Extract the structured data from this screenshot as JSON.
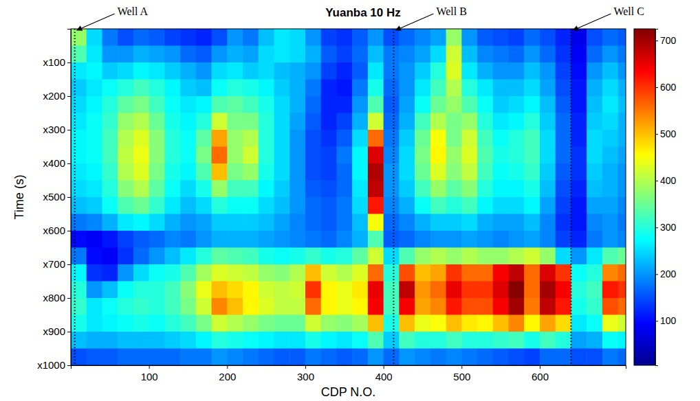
{
  "chart_data": {
    "type": "heatmap",
    "title": "Yuanba 10 Hz",
    "x_label": "CDP N.O.",
    "y_label": "Time (s)",
    "x": [
      10,
      30,
      50,
      70,
      90,
      110,
      130,
      150,
      170,
      190,
      210,
      230,
      250,
      270,
      290,
      310,
      330,
      350,
      370,
      390,
      410,
      430,
      450,
      470,
      490,
      510,
      530,
      550,
      570,
      590,
      610,
      630,
      650,
      670,
      690,
      710
    ],
    "y": [
      25,
      75,
      125,
      175,
      225,
      275,
      325,
      375,
      425,
      475,
      525,
      575,
      625,
      675,
      725,
      775,
      825,
      875,
      925,
      975
    ],
    "values": [
      [
        380,
        250,
        180,
        150,
        170,
        160,
        140,
        130,
        120,
        150,
        200,
        180,
        230,
        260,
        250,
        200,
        140,
        130,
        160,
        200,
        150,
        170,
        190,
        210,
        380,
        200,
        160,
        150,
        140,
        170,
        150,
        120,
        80,
        150,
        170,
        160
      ],
      [
        330,
        260,
        200,
        200,
        220,
        210,
        200,
        170,
        160,
        200,
        220,
        210,
        250,
        260,
        250,
        220,
        160,
        140,
        170,
        230,
        180,
        190,
        210,
        250,
        420,
        230,
        190,
        180,
        170,
        200,
        170,
        130,
        90,
        170,
        200,
        180
      ],
      [
        260,
        270,
        240,
        250,
        270,
        260,
        240,
        220,
        200,
        250,
        260,
        240,
        250,
        230,
        220,
        200,
        140,
        120,
        160,
        260,
        180,
        200,
        240,
        300,
        430,
        260,
        220,
        200,
        200,
        230,
        200,
        140,
        100,
        200,
        230,
        200
      ],
      [
        240,
        260,
        280,
        300,
        320,
        300,
        270,
        240,
        230,
        280,
        300,
        290,
        270,
        240,
        220,
        180,
        120,
        110,
        180,
        290,
        170,
        200,
        260,
        320,
        400,
        300,
        260,
        230,
        230,
        250,
        210,
        150,
        110,
        220,
        250,
        220
      ],
      [
        250,
        270,
        300,
        340,
        360,
        320,
        280,
        260,
        270,
        330,
        340,
        320,
        290,
        250,
        220,
        170,
        120,
        120,
        200,
        330,
        160,
        210,
        280,
        350,
        380,
        330,
        280,
        240,
        250,
        270,
        230,
        160,
        110,
        230,
        260,
        230
      ],
      [
        260,
        280,
        310,
        380,
        400,
        350,
        290,
        270,
        300,
        420,
        360,
        360,
        300,
        250,
        210,
        160,
        120,
        140,
        220,
        420,
        170,
        220,
        320,
        400,
        360,
        380,
        300,
        260,
        270,
        300,
        240,
        170,
        120,
        240,
        250,
        220
      ],
      [
        270,
        280,
        320,
        400,
        430,
        370,
        300,
        280,
        340,
        520,
        380,
        400,
        300,
        250,
        200,
        150,
        130,
        160,
        250,
        560,
        180,
        240,
        350,
        450,
        360,
        420,
        320,
        280,
        300,
        320,
        250,
        170,
        120,
        250,
        240,
        220
      ],
      [
        270,
        280,
        320,
        410,
        440,
        370,
        300,
        280,
        360,
        560,
        380,
        420,
        300,
        250,
        200,
        150,
        140,
        180,
        270,
        660,
        190,
        250,
        360,
        460,
        380,
        430,
        330,
        290,
        300,
        320,
        250,
        170,
        130,
        250,
        230,
        210
      ],
      [
        260,
        270,
        310,
        400,
        430,
        360,
        290,
        270,
        330,
        500,
        360,
        380,
        290,
        250,
        200,
        150,
        140,
        170,
        270,
        690,
        200,
        250,
        350,
        430,
        370,
        410,
        320,
        280,
        290,
        310,
        240,
        160,
        130,
        240,
        220,
        200
      ],
      [
        250,
        260,
        300,
        370,
        400,
        340,
        280,
        250,
        290,
        380,
        320,
        320,
        270,
        240,
        200,
        160,
        150,
        170,
        260,
        680,
        200,
        240,
        320,
        380,
        340,
        370,
        300,
        270,
        270,
        290,
        230,
        150,
        120,
        230,
        220,
        200
      ],
      [
        230,
        240,
        280,
        330,
        350,
        310,
        260,
        230,
        250,
        300,
        280,
        280,
        250,
        230,
        200,
        170,
        160,
        180,
        250,
        620,
        190,
        220,
        280,
        320,
        300,
        320,
        270,
        250,
        250,
        270,
        210,
        140,
        110,
        210,
        210,
        190
      ],
      [
        180,
        190,
        220,
        260,
        270,
        250,
        220,
        200,
        210,
        240,
        240,
        240,
        230,
        210,
        190,
        170,
        160,
        180,
        230,
        450,
        170,
        190,
        220,
        240,
        240,
        250,
        220,
        210,
        210,
        230,
        190,
        130,
        110,
        190,
        200,
        180
      ],
      [
        100,
        90,
        110,
        140,
        160,
        170,
        190,
        180,
        200,
        220,
        220,
        220,
        210,
        200,
        190,
        180,
        170,
        190,
        220,
        330,
        160,
        170,
        190,
        200,
        200,
        210,
        200,
        190,
        200,
        210,
        190,
        140,
        120,
        180,
        200,
        190
      ],
      [
        180,
        100,
        90,
        130,
        170,
        200,
        230,
        260,
        300,
        340,
        330,
        320,
        290,
        280,
        290,
        310,
        290,
        300,
        340,
        420,
        250,
        330,
        380,
        400,
        380,
        400,
        380,
        380,
        400,
        420,
        380,
        250,
        200,
        260,
        330,
        350
      ],
      [
        270,
        130,
        120,
        200,
        250,
        280,
        290,
        330,
        390,
        430,
        420,
        410,
        380,
        370,
        400,
        500,
        420,
        400,
        430,
        560,
        300,
        580,
        500,
        520,
        600,
        560,
        560,
        640,
        680,
        560,
        660,
        600,
        280,
        300,
        540,
        560
      ],
      [
        300,
        200,
        230,
        280,
        300,
        300,
        320,
        370,
        440,
        500,
        480,
        460,
        420,
        410,
        420,
        600,
        460,
        440,
        470,
        650,
        320,
        680,
        530,
        560,
        650,
        600,
        600,
        660,
        720,
        560,
        700,
        640,
        300,
        320,
        620,
        600
      ],
      [
        310,
        260,
        280,
        300,
        310,
        300,
        320,
        360,
        420,
        540,
        500,
        460,
        430,
        410,
        410,
        560,
        460,
        440,
        460,
        640,
        320,
        640,
        520,
        540,
        620,
        580,
        580,
        640,
        700,
        550,
        680,
        620,
        290,
        310,
        580,
        560
      ],
      [
        290,
        260,
        270,
        280,
        290,
        280,
        300,
        320,
        360,
        420,
        400,
        380,
        360,
        350,
        350,
        420,
        380,
        370,
        390,
        500,
        290,
        500,
        440,
        450,
        500,
        470,
        460,
        500,
        540,
        460,
        520,
        480,
        260,
        280,
        440,
        420
      ],
      [
        230,
        220,
        220,
        230,
        230,
        230,
        240,
        250,
        270,
        300,
        290,
        280,
        270,
        260,
        260,
        290,
        270,
        260,
        280,
        330,
        240,
        320,
        300,
        300,
        320,
        300,
        300,
        310,
        320,
        290,
        320,
        300,
        210,
        220,
        280,
        270
      ],
      [
        150,
        160,
        160,
        170,
        170,
        170,
        170,
        180,
        180,
        200,
        190,
        180,
        170,
        160,
        160,
        180,
        170,
        160,
        170,
        200,
        170,
        200,
        190,
        180,
        190,
        180,
        170,
        160,
        150,
        140,
        170,
        170,
        150,
        150,
        180,
        170
      ]
    ],
    "xlim": [
      0,
      710
    ],
    "ylim": [
      0,
      1000
    ],
    "xticks": [
      100,
      200,
      300,
      400,
      500,
      600
    ],
    "yticks": [
      {
        "value": 100,
        "label": "x100"
      },
      {
        "value": 200,
        "label": "x200"
      },
      {
        "value": 300,
        "label": "x300"
      },
      {
        "value": 400,
        "label": "x400"
      },
      {
        "value": 500,
        "label": "x500"
      },
      {
        "value": 600,
        "label": "x600"
      },
      {
        "value": 700,
        "label": "x700"
      },
      {
        "value": 800,
        "label": "x800"
      },
      {
        "value": 900,
        "label": "x900"
      },
      {
        "value": 1000,
        "label": "x1000"
      }
    ],
    "colorbar": {
      "range": [
        5,
        725
      ],
      "ticks": [
        100,
        200,
        300,
        400,
        500,
        600,
        700
      ]
    },
    "annotations": [
      {
        "label": "Well A",
        "x": 5
      },
      {
        "label": "Well B",
        "x": 413
      },
      {
        "label": "Well C",
        "x": 640
      }
    ]
  }
}
